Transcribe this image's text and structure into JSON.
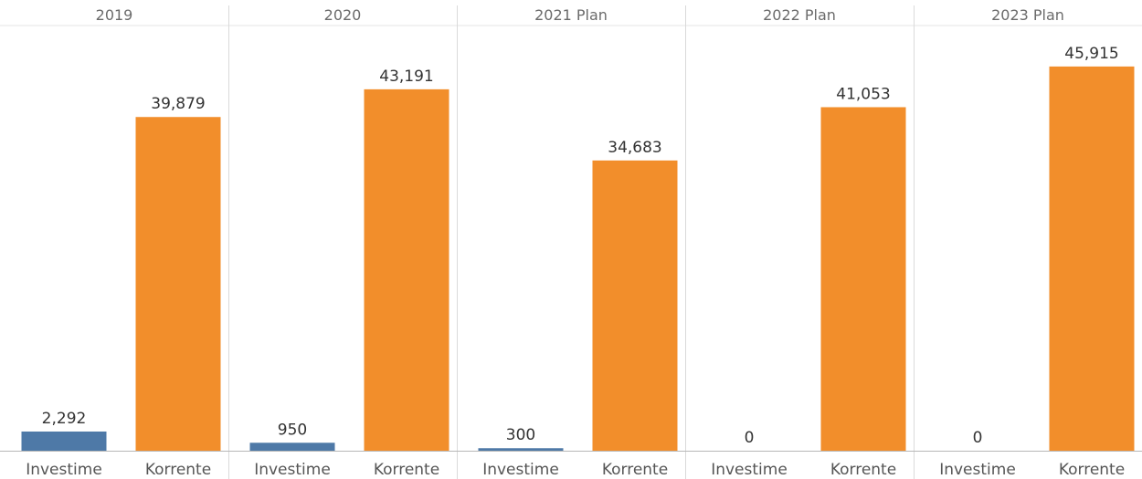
{
  "chart_data": {
    "type": "bar",
    "panels": [
      {
        "header": "2019",
        "categories": [
          "Investime",
          "Korrente"
        ],
        "values": [
          2292,
          39879
        ],
        "value_labels": [
          "2,292",
          "39,879"
        ]
      },
      {
        "header": "2020",
        "categories": [
          "Investime",
          "Korrente"
        ],
        "values": [
          950,
          43191
        ],
        "value_labels": [
          "950",
          "43,191"
        ]
      },
      {
        "header": "2021 Plan",
        "categories": [
          "Investime",
          "Korrente"
        ],
        "values": [
          300,
          34683
        ],
        "value_labels": [
          "300",
          "34,683"
        ]
      },
      {
        "header": "2022 Plan",
        "categories": [
          "Investime",
          "Korrente"
        ],
        "values": [
          0,
          41053
        ],
        "value_labels": [
          "0",
          "41,053"
        ]
      },
      {
        "header": "2023 Plan",
        "categories": [
          "Investime",
          "Korrente"
        ],
        "values": [
          0,
          45915
        ],
        "value_labels": [
          "0",
          "45,915"
        ]
      }
    ],
    "colors": {
      "Investime": "#4e79a7",
      "Korrente": "#f28e2b"
    },
    "ylim": [
      0,
      49500
    ],
    "grid": false,
    "legend": "none"
  }
}
